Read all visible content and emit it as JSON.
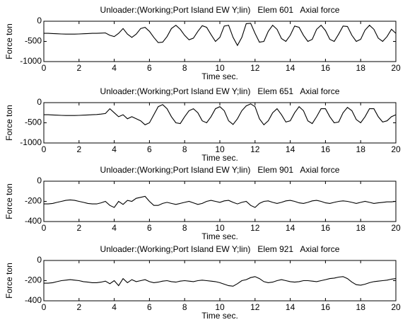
{
  "chart_data": [
    {
      "type": "line",
      "title": "Unloader:(Working;Port Island EW Y;lin)   Elem 601   Axial force",
      "xlabel": "Time sec.",
      "ylabel": "Force ton",
      "color": "#000000",
      "x": [
        0,
        0.25,
        0.5,
        0.75,
        1,
        1.25,
        1.5,
        1.75,
        2,
        2.25,
        2.5,
        2.75,
        3,
        3.25,
        3.5,
        3.75,
        4,
        4.25,
        4.5,
        4.75,
        5,
        5.25,
        5.5,
        5.75,
        6,
        6.25,
        6.5,
        6.75,
        7,
        7.25,
        7.5,
        7.75,
        8,
        8.25,
        8.5,
        8.75,
        9,
        9.25,
        9.5,
        9.75,
        10,
        10.25,
        10.5,
        10.75,
        11,
        11.25,
        11.5,
        11.75,
        12,
        12.25,
        12.5,
        12.75,
        13,
        13.25,
        13.5,
        13.75,
        14,
        14.25,
        14.5,
        14.75,
        15,
        15.25,
        15.5,
        15.75,
        16,
        16.25,
        16.5,
        16.75,
        17,
        17.25,
        17.5,
        17.75,
        18,
        18.25,
        18.5,
        18.75,
        19,
        19.25,
        19.5,
        19.75,
        20
      ],
      "values": [
        -300,
        -300,
        -305,
        -310,
        -315,
        -320,
        -320,
        -320,
        -315,
        -310,
        -305,
        -300,
        -300,
        -295,
        -290,
        -350,
        -380,
        -300,
        -180,
        -320,
        -400,
        -320,
        -180,
        -150,
        -250,
        -400,
        -530,
        -520,
        -380,
        -180,
        -100,
        -200,
        -350,
        -460,
        -420,
        -250,
        -110,
        -150,
        -330,
        -500,
        -400,
        -120,
        -100,
        -400,
        -600,
        -400,
        -60,
        -50,
        -300,
        -520,
        -500,
        -250,
        -100,
        -200,
        -430,
        -500,
        -350,
        -120,
        -150,
        -350,
        -500,
        -450,
        -200,
        -100,
        -230,
        -450,
        -500,
        -320,
        -120,
        -130,
        -350,
        -500,
        -450,
        -220,
        -100,
        -200,
        -420,
        -500,
        -380,
        -200,
        -300
      ],
      "xlim": [
        0,
        20
      ],
      "ylim": [
        -1000,
        0
      ],
      "xticks": [
        0,
        2,
        4,
        6,
        8,
        10,
        12,
        14,
        16,
        18,
        20
      ],
      "yticks": [
        0,
        -500,
        -1000
      ]
    },
    {
      "type": "line",
      "title": "Unloader:(Working;Port Island EW Y;lin)   Elem 651   Axial force",
      "xlabel": "Time sec.",
      "ylabel": "Force ton",
      "color": "#000000",
      "x": [
        0,
        0.25,
        0.5,
        0.75,
        1,
        1.25,
        1.5,
        1.75,
        2,
        2.25,
        2.5,
        2.75,
        3,
        3.25,
        3.5,
        3.75,
        4,
        4.25,
        4.5,
        4.75,
        5,
        5.25,
        5.5,
        5.75,
        6,
        6.25,
        6.5,
        6.75,
        7,
        7.25,
        7.5,
        7.75,
        8,
        8.25,
        8.5,
        8.75,
        9,
        9.25,
        9.5,
        9.75,
        10,
        10.25,
        10.5,
        10.75,
        11,
        11.25,
        11.5,
        11.75,
        12,
        12.25,
        12.5,
        12.75,
        13,
        13.25,
        13.5,
        13.75,
        14,
        14.25,
        14.5,
        14.75,
        15,
        15.25,
        15.5,
        15.75,
        16,
        16.25,
        16.5,
        16.75,
        17,
        17.25,
        17.5,
        17.75,
        18,
        18.25,
        18.5,
        18.75,
        19,
        19.25,
        19.5,
        19.75,
        20
      ],
      "values": [
        -300,
        -300,
        -305,
        -310,
        -315,
        -320,
        -320,
        -320,
        -315,
        -310,
        -305,
        -300,
        -295,
        -285,
        -270,
        -150,
        -250,
        -350,
        -300,
        -400,
        -350,
        -400,
        -450,
        -550,
        -500,
        -300,
        -100,
        -50,
        -150,
        -350,
        -500,
        -520,
        -350,
        -200,
        -150,
        -250,
        -450,
        -500,
        -350,
        -150,
        -100,
        -200,
        -450,
        -540,
        -400,
        -200,
        -80,
        -30,
        -100,
        -400,
        -550,
        -450,
        -250,
        -150,
        -300,
        -480,
        -450,
        -250,
        -100,
        -200,
        -450,
        -520,
        -350,
        -150,
        -150,
        -350,
        -500,
        -480,
        -250,
        -120,
        -200,
        -420,
        -500,
        -350,
        -150,
        -150,
        -350,
        -480,
        -450,
        -350,
        -300
      ],
      "xlim": [
        0,
        20
      ],
      "ylim": [
        -1000,
        0
      ],
      "xticks": [
        0,
        2,
        4,
        6,
        8,
        10,
        12,
        14,
        16,
        18,
        20
      ],
      "yticks": [
        0,
        -500,
        -1000
      ]
    },
    {
      "type": "line",
      "title": "Unloader:(Working;Port Island EW Y;lin)   Elem 901   Axial force",
      "xlabel": "Time sec.",
      "ylabel": "Force ton",
      "color": "#000000",
      "x": [
        0,
        0.25,
        0.5,
        0.75,
        1,
        1.25,
        1.5,
        1.75,
        2,
        2.25,
        2.5,
        2.75,
        3,
        3.25,
        3.5,
        3.75,
        4,
        4.25,
        4.5,
        4.75,
        5,
        5.25,
        5.5,
        5.75,
        6,
        6.25,
        6.5,
        6.75,
        7,
        7.25,
        7.5,
        7.75,
        8,
        8.25,
        8.5,
        8.75,
        9,
        9.25,
        9.5,
        9.75,
        10,
        10.25,
        10.5,
        10.75,
        11,
        11.25,
        11.5,
        11.75,
        12,
        12.25,
        12.5,
        12.75,
        13,
        13.25,
        13.5,
        13.75,
        14,
        14.25,
        14.5,
        14.75,
        15,
        15.25,
        15.5,
        15.75,
        16,
        16.25,
        16.5,
        16.75,
        17,
        17.25,
        17.5,
        17.75,
        18,
        18.25,
        18.5,
        18.75,
        19,
        19.25,
        19.5,
        19.75,
        20
      ],
      "values": [
        -225,
        -225,
        -220,
        -210,
        -200,
        -190,
        -185,
        -190,
        -200,
        -210,
        -220,
        -225,
        -225,
        -215,
        -200,
        -240,
        -260,
        -200,
        -230,
        -190,
        -200,
        -170,
        -160,
        -150,
        -200,
        -240,
        -240,
        -220,
        -210,
        -220,
        -230,
        -220,
        -210,
        -200,
        -215,
        -230,
        -220,
        -200,
        -190,
        -200,
        -210,
        -195,
        -190,
        -210,
        -225,
        -210,
        -200,
        -240,
        -260,
        -220,
        -200,
        -195,
        -210,
        -220,
        -210,
        -195,
        -190,
        -200,
        -215,
        -220,
        -210,
        -195,
        -190,
        -200,
        -215,
        -220,
        -210,
        -200,
        -195,
        -200,
        -210,
        -220,
        -210,
        -200,
        -210,
        -220,
        -215,
        -210,
        -205,
        -205,
        -200
      ],
      "xlim": [
        0,
        20
      ],
      "ylim": [
        -400,
        0
      ],
      "xticks": [
        0,
        2,
        4,
        6,
        8,
        10,
        12,
        14,
        16,
        18,
        20
      ],
      "yticks": [
        0,
        -200,
        -400
      ]
    },
    {
      "type": "line",
      "title": "Unloader:(Working;Port Island EW Y;lin)   Elem 921   Axial force",
      "xlabel": "Time sec.",
      "ylabel": "Force ton",
      "color": "#000000",
      "x": [
        0,
        0.25,
        0.5,
        0.75,
        1,
        1.25,
        1.5,
        1.75,
        2,
        2.25,
        2.5,
        2.75,
        3,
        3.25,
        3.5,
        3.75,
        4,
        4.25,
        4.5,
        4.75,
        5,
        5.25,
        5.5,
        5.75,
        6,
        6.25,
        6.5,
        6.75,
        7,
        7.25,
        7.5,
        7.75,
        8,
        8.25,
        8.5,
        8.75,
        9,
        9.25,
        9.5,
        9.75,
        10,
        10.25,
        10.5,
        10.75,
        11,
        11.25,
        11.5,
        11.75,
        12,
        12.25,
        12.5,
        12.75,
        13,
        13.25,
        13.5,
        13.75,
        14,
        14.25,
        14.5,
        14.75,
        15,
        15.25,
        15.5,
        15.75,
        16,
        16.25,
        16.5,
        16.75,
        17,
        17.25,
        17.5,
        17.75,
        18,
        18.25,
        18.5,
        18.75,
        19,
        19.25,
        19.5,
        19.75,
        20
      ],
      "values": [
        -225,
        -225,
        -220,
        -210,
        -200,
        -195,
        -190,
        -195,
        -200,
        -210,
        -215,
        -220,
        -220,
        -215,
        -205,
        -230,
        -200,
        -250,
        -180,
        -220,
        -190,
        -210,
        -200,
        -190,
        -210,
        -220,
        -215,
        -205,
        -200,
        -210,
        -215,
        -205,
        -200,
        -205,
        -210,
        -200,
        -195,
        -200,
        -205,
        -210,
        -220,
        -235,
        -250,
        -255,
        -230,
        -200,
        -190,
        -170,
        -160,
        -180,
        -210,
        -220,
        -215,
        -200,
        -190,
        -200,
        -210,
        -215,
        -210,
        -200,
        -200,
        -205,
        -210,
        -200,
        -190,
        -180,
        -175,
        -165,
        -160,
        -180,
        -215,
        -240,
        -245,
        -235,
        -220,
        -210,
        -205,
        -200,
        -195,
        -185,
        -180
      ],
      "xlim": [
        0,
        20
      ],
      "ylim": [
        -400,
        0
      ],
      "xticks": [
        0,
        2,
        4,
        6,
        8,
        10,
        12,
        14,
        16,
        18,
        20
      ],
      "yticks": [
        0,
        -200,
        -400
      ]
    }
  ]
}
